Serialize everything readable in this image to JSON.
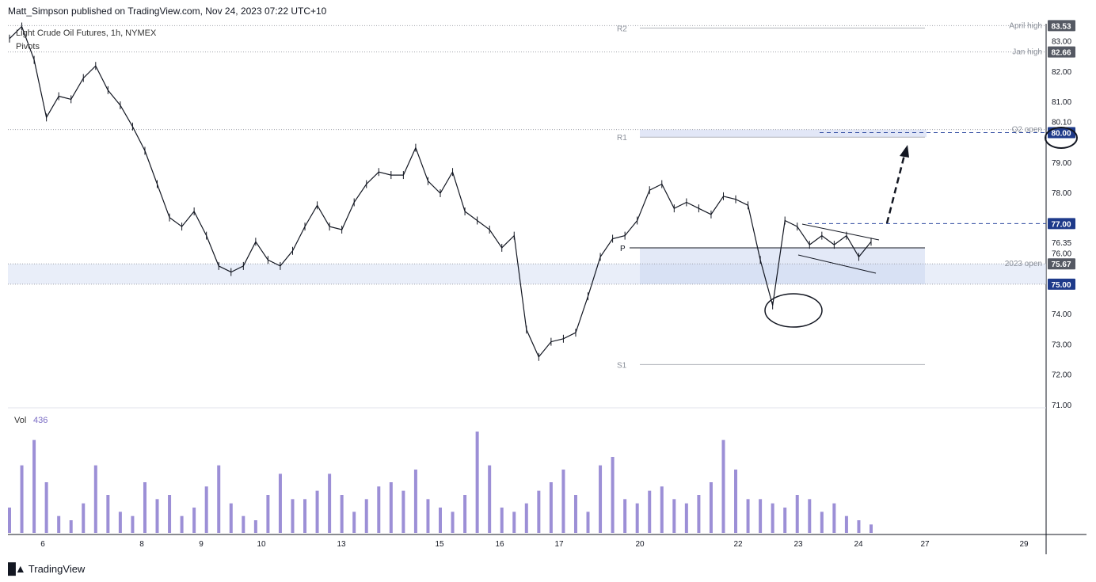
{
  "header": {
    "text": "Matt_Simpson published on TradingView.com, Nov 24, 2023 07:22 UTC+10"
  },
  "footer": {
    "brand": "TradingView",
    "logo_icon": "tradingview-logo-icon"
  },
  "chart_data": {
    "type": "line",
    "title": "Light Crude Oil Futures, 1h, NYMEX",
    "indicator_label": "Pivots",
    "ylim": [
      71.0,
      83.8
    ],
    "y_ticks": [
      "83.00",
      "82.00",
      "81.00",
      "79.00",
      "78.00",
      "76.35",
      "76.00",
      "74.00",
      "73.00",
      "72.00",
      "71.00"
    ],
    "x_ticks": [
      "6",
      "8",
      "9",
      "10",
      "13",
      "15",
      "16",
      "17",
      "20",
      "22",
      "23",
      "24",
      "27",
      "29"
    ],
    "series": [
      {
        "values": [
          83.1,
          83.5,
          82.4,
          80.5,
          81.2,
          81.1,
          81.8,
          82.2,
          81.4,
          80.9,
          80.2,
          79.4,
          78.3,
          77.2,
          76.9,
          77.4,
          76.6,
          75.6,
          75.4,
          75.6,
          76.4,
          75.8,
          75.6,
          76.1,
          76.9,
          77.6,
          76.9,
          76.8,
          77.7,
          78.3,
          78.7,
          78.6,
          78.6,
          79.5,
          78.4,
          78.0,
          78.7,
          77.4,
          77.1,
          76.8,
          76.2,
          76.6,
          73.5,
          72.6,
          73.1,
          73.2,
          73.4,
          74.6,
          75.9,
          76.5,
          76.6,
          77.1,
          78.1,
          78.3,
          77.5,
          77.7,
          77.5,
          77.3,
          77.9,
          77.8,
          77.6,
          75.8,
          74.3,
          77.1,
          76.9,
          76.3,
          76.6,
          76.3,
          76.6,
          75.9,
          76.4
        ]
      }
    ],
    "levels": [
      {
        "label": "April high",
        "value": 83.53,
        "value_text": "83.53"
      },
      {
        "label": "Jan high",
        "value": 82.66,
        "value_text": "82.66"
      },
      {
        "label": "Q2 open",
        "value": 80.1,
        "value_text": "80.10"
      },
      {
        "label": "",
        "value": 80.0,
        "value_text": "80.00"
      },
      {
        "label": "",
        "value": 77.0,
        "value_text": "77.00"
      },
      {
        "label": "2023 open",
        "value": 75.67,
        "value_text": "75.67"
      },
      {
        "label": "",
        "value": 75.0,
        "value_text": "75.00"
      }
    ],
    "pivots": [
      {
        "label": "R2",
        "value": 83.45
      },
      {
        "label": "R1",
        "value": 79.85
      },
      {
        "label": "P",
        "value": 76.2
      },
      {
        "label": "S1",
        "value": 72.35
      }
    ],
    "volume": {
      "label": "Vol",
      "value_text": "436",
      "values": [
        30,
        80,
        110,
        60,
        20,
        15,
        35,
        80,
        45,
        25,
        20,
        60,
        40,
        45,
        20,
        30,
        55,
        80,
        35,
        20,
        15,
        45,
        70,
        40,
        40,
        50,
        70,
        45,
        25,
        40,
        55,
        60,
        50,
        75,
        40,
        30,
        25,
        45,
        120,
        80,
        30,
        25,
        35,
        50,
        60,
        75,
        45,
        25,
        80,
        90,
        40,
        35,
        50,
        55,
        40,
        35,
        45,
        60,
        110,
        75,
        40,
        40,
        35,
        30,
        45,
        40,
        25,
        35,
        20,
        15,
        10
      ]
    },
    "colors": {
      "candles": "#131722",
      "volume": "#9c8fd6",
      "zone": "#dbe2f5",
      "dashed_blue": "#2e4aa0",
      "level_dotted": "#a0a3ab",
      "price_tag_bg": "#555963",
      "blue_tag_bg": "#1e3a8a"
    }
  }
}
